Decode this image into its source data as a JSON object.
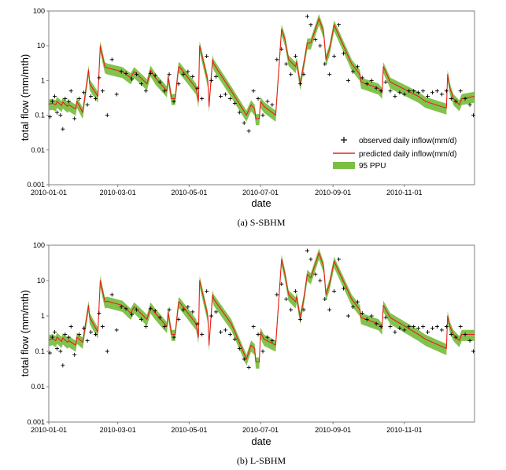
{
  "chart_data": [
    {
      "type": "line",
      "caption": "(a)  S-SBHM",
      "xlabel": "date",
      "ylabel": "total flow (mm/mth)",
      "yscale": "log",
      "ylim": [
        0.001,
        100
      ],
      "y_ticks": [
        "0.001",
        "0.01",
        "0.1",
        "1",
        "10",
        "100"
      ],
      "xlim": [
        "2010-01-01",
        "2010-12-31"
      ],
      "x_ticks": [
        "2010-01-01",
        "2010-03-01",
        "2010-05-01",
        "2010-07-01",
        "2010-09-01",
        "2010-11-01"
      ],
      "legend": {
        "position": "bottom-right",
        "entries": [
          "observed daily inflow(mm/d)",
          "predicted daily inflow(mm/d)",
          "95 PPU"
        ]
      },
      "colors": {
        "observed": "#000000",
        "predicted": "#e8201c",
        "ppu": "#7bc043"
      },
      "predicted": {
        "x": [
          "2010-01-01",
          "2010-01-04",
          "2010-01-07",
          "2010-01-08",
          "2010-01-12",
          "2010-01-13",
          "2010-01-17",
          "2010-01-18",
          "2010-01-24",
          "2010-01-25",
          "2010-01-30",
          "2010-02-04",
          "2010-02-05",
          "2010-02-12",
          "2010-02-14",
          "2010-02-18",
          "2010-02-20",
          "2010-03-05",
          "2010-03-12",
          "2010-03-15",
          "2010-03-23",
          "2010-03-26",
          "2010-03-29",
          "2010-04-02",
          "2010-04-12",
          "2010-04-13",
          "2010-04-16",
          "2010-04-19",
          "2010-04-22",
          "2010-04-23",
          "2010-05-07",
          "2010-05-09",
          "2010-05-10",
          "2010-05-17",
          "2010-05-18",
          "2010-05-21",
          "2010-05-22",
          "2010-06-06",
          "2010-06-19",
          "2010-06-23",
          "2010-06-26",
          "2010-06-27",
          "2010-06-30",
          "2010-07-01",
          "2010-07-04",
          "2010-07-14",
          "2010-07-19",
          "2010-07-22",
          "2010-07-25",
          "2010-07-31",
          "2010-08-01",
          "2010-08-04",
          "2010-08-07",
          "2010-08-10",
          "2010-08-13",
          "2010-08-20",
          "2010-08-24",
          "2010-08-26",
          "2010-08-29",
          "2010-09-02",
          "2010-09-17",
          "2010-09-21",
          "2010-09-24",
          "2010-09-25",
          "2010-10-10",
          "2010-10-13",
          "2010-10-14",
          "2010-10-20",
          "2010-11-13",
          "2010-11-19",
          "2010-12-07",
          "2010-12-08",
          "2010-12-10",
          "2010-12-13",
          "2010-12-18",
          "2010-12-20",
          "2010-12-31"
        ],
        "y": [
          0.21,
          0.22,
          0.2,
          0.25,
          0.19,
          0.24,
          0.18,
          0.2,
          0.15,
          0.25,
          0.12,
          2.0,
          0.8,
          0.35,
          10,
          2.5,
          2.3,
          1.8,
          1.2,
          1.8,
          1.0,
          0.8,
          2.0,
          1.2,
          0.5,
          1.3,
          0.3,
          0.3,
          2.5,
          2.4,
          0.6,
          0.25,
          10,
          1.0,
          0.18,
          4.0,
          3.0,
          0.5,
          0.1,
          0.2,
          0.15,
          0.08,
          0.08,
          0.25,
          0.18,
          0.1,
          30,
          15,
          4.0,
          2.5,
          3.5,
          0.8,
          3.0,
          12,
          12,
          60,
          25,
          4.0,
          8.0,
          40,
          3.0,
          2.0,
          1.5,
          0.9,
          0.6,
          0.45,
          2.5,
          0.9,
          0.35,
          0.25,
          0.16,
          1.5,
          0.6,
          0.3,
          0.2,
          0.3,
          0.35
        ]
      },
      "observed": {
        "x": [
          "2010-01-02",
          "2010-01-04",
          "2010-01-06",
          "2010-01-08",
          "2010-01-11",
          "2010-01-13",
          "2010-01-15",
          "2010-01-18",
          "2010-01-20",
          "2010-01-23",
          "2010-01-27",
          "2010-01-31",
          "2010-02-03",
          "2010-02-06",
          "2010-02-10",
          "2010-02-13",
          "2010-02-16",
          "2010-02-20",
          "2010-02-24",
          "2010-02-28",
          "2010-03-04",
          "2010-03-08",
          "2010-03-13",
          "2010-03-17",
          "2010-03-21",
          "2010-03-25",
          "2010-03-29",
          "2010-04-02",
          "2010-04-06",
          "2010-04-10",
          "2010-04-14",
          "2010-04-18",
          "2010-04-22",
          "2010-04-26",
          "2010-04-30",
          "2010-05-04",
          "2010-05-08",
          "2010-05-12",
          "2010-05-16",
          "2010-05-20",
          "2010-05-24",
          "2010-05-28",
          "2010-06-01",
          "2010-06-05",
          "2010-06-09",
          "2010-06-13",
          "2010-06-17",
          "2010-06-21",
          "2010-06-25",
          "2010-06-29",
          "2010-07-03",
          "2010-07-07",
          "2010-07-11",
          "2010-07-15",
          "2010-07-19",
          "2010-07-23",
          "2010-07-27",
          "2010-07-31",
          "2010-08-04",
          "2010-08-07",
          "2010-08-10",
          "2010-08-13",
          "2010-08-17",
          "2010-08-21",
          "2010-08-25",
          "2010-08-29",
          "2010-09-02",
          "2010-09-06",
          "2010-09-10",
          "2010-09-14",
          "2010-09-18",
          "2010-09-22",
          "2010-09-26",
          "2010-09-30",
          "2010-10-04",
          "2010-10-08",
          "2010-10-12",
          "2010-10-16",
          "2010-10-20",
          "2010-10-24",
          "2010-10-28",
          "2010-11-01",
          "2010-11-05",
          "2010-11-09",
          "2010-11-13",
          "2010-11-17",
          "2010-11-21",
          "2010-11-25",
          "2010-11-29",
          "2010-12-03",
          "2010-12-07",
          "2010-12-11",
          "2010-12-15",
          "2010-12-19",
          "2010-12-23",
          "2010-12-27",
          "2010-12-30"
        ],
        "y": [
          0.09,
          0.25,
          0.35,
          0.12,
          0.1,
          0.04,
          0.3,
          0.25,
          0.5,
          0.08,
          0.3,
          0.45,
          0.2,
          0.35,
          0.3,
          1.2,
          0.5,
          0.1,
          4.0,
          0.4,
          1.8,
          1.6,
          1.1,
          1.5,
          0.8,
          0.5,
          1.6,
          1.4,
          0.9,
          0.5,
          1.5,
          0.25,
          0.8,
          1.5,
          1.8,
          1.3,
          0.6,
          0.3,
          5.0,
          1.0,
          1.3,
          0.35,
          0.4,
          0.3,
          0.22,
          0.12,
          0.06,
          0.035,
          0.5,
          0.3,
          0.1,
          0.25,
          0.2,
          4.0,
          8.0,
          3.0,
          1.5,
          5.0,
          0.8,
          1.5,
          70,
          40,
          15,
          10,
          3.0,
          1.5,
          5.0,
          40,
          6.0,
          1.0,
          1.8,
          2.5,
          1.2,
          0.8,
          1.0,
          0.6,
          0.5,
          0.9,
          0.5,
          0.35,
          0.45,
          0.4,
          0.5,
          0.5,
          0.45,
          0.5,
          0.35,
          0.45,
          0.5,
          0.4,
          0.5,
          0.3,
          0.25,
          0.5,
          0.3,
          0.2,
          0.1
        ]
      }
    },
    {
      "type": "line",
      "caption": "(b)  L-SBHM",
      "xlabel": "date",
      "ylabel": "total flow (mm/mth)",
      "yscale": "log",
      "ylim": [
        0.001,
        100
      ],
      "y_ticks": [
        "0.001",
        "0.01",
        "0.1",
        "1",
        "10",
        "100"
      ],
      "xlim": [
        "2010-01-01",
        "2010-12-31"
      ],
      "x_ticks": [
        "2010-01-01",
        "2010-03-01",
        "2010-05-01",
        "2010-07-01",
        "2010-09-01",
        "2010-11-01"
      ],
      "colors": {
        "observed": "#000000",
        "predicted": "#e8201c",
        "ppu": "#7bc043"
      },
      "predicted": {
        "x": [
          "2010-01-01",
          "2010-01-04",
          "2010-01-07",
          "2010-01-08",
          "2010-01-12",
          "2010-01-13",
          "2010-01-17",
          "2010-01-18",
          "2010-01-24",
          "2010-01-25",
          "2010-01-30",
          "2010-02-04",
          "2010-02-05",
          "2010-02-12",
          "2010-02-14",
          "2010-02-18",
          "2010-02-20",
          "2010-03-05",
          "2010-03-12",
          "2010-03-15",
          "2010-03-23",
          "2010-03-26",
          "2010-03-29",
          "2010-04-02",
          "2010-04-12",
          "2010-04-13",
          "2010-04-16",
          "2010-04-19",
          "2010-04-22",
          "2010-04-23",
          "2010-05-07",
          "2010-05-09",
          "2010-05-10",
          "2010-05-17",
          "2010-05-18",
          "2010-05-21",
          "2010-05-22",
          "2010-06-06",
          "2010-06-19",
          "2010-06-23",
          "2010-06-26",
          "2010-06-27",
          "2010-06-30",
          "2010-07-01",
          "2010-07-04",
          "2010-07-14",
          "2010-07-19",
          "2010-07-22",
          "2010-07-25",
          "2010-07-31",
          "2010-08-01",
          "2010-08-04",
          "2010-08-07",
          "2010-08-10",
          "2010-08-13",
          "2010-08-20",
          "2010-08-24",
          "2010-08-26",
          "2010-08-29",
          "2010-09-02",
          "2010-09-17",
          "2010-09-21",
          "2010-09-24",
          "2010-09-25",
          "2010-10-10",
          "2010-10-13",
          "2010-10-14",
          "2010-10-20",
          "2010-11-13",
          "2010-11-19",
          "2010-12-07",
          "2010-12-08",
          "2010-12-10",
          "2010-12-13",
          "2010-12-18",
          "2010-12-20",
          "2010-12-31"
        ],
        "y": [
          0.21,
          0.23,
          0.2,
          0.25,
          0.19,
          0.24,
          0.18,
          0.2,
          0.15,
          0.25,
          0.18,
          2.0,
          0.9,
          0.35,
          10,
          2.5,
          2.6,
          2.0,
          1.2,
          1.8,
          1.0,
          0.8,
          1.8,
          1.2,
          0.5,
          1.3,
          0.3,
          0.3,
          2.5,
          2.4,
          0.6,
          0.25,
          10,
          1.0,
          0.15,
          4.0,
          3.0,
          0.6,
          0.06,
          0.15,
          0.12,
          0.05,
          0.05,
          0.35,
          0.22,
          0.15,
          40,
          15,
          4.0,
          2.5,
          3.5,
          0.9,
          3.0,
          15,
          12,
          60,
          25,
          4.0,
          8.0,
          35,
          3.0,
          2.0,
          1.5,
          0.9,
          0.6,
          0.45,
          2.0,
          0.9,
          0.3,
          0.22,
          0.12,
          1.0,
          0.5,
          0.3,
          0.2,
          0.3,
          0.3
        ]
      },
      "observed": {
        "x": [
          "2010-01-02",
          "2010-01-04",
          "2010-01-06",
          "2010-01-08",
          "2010-01-11",
          "2010-01-13",
          "2010-01-15",
          "2010-01-18",
          "2010-01-20",
          "2010-01-23",
          "2010-01-27",
          "2010-01-31",
          "2010-02-03",
          "2010-02-06",
          "2010-02-10",
          "2010-02-13",
          "2010-02-16",
          "2010-02-20",
          "2010-02-24",
          "2010-02-28",
          "2010-03-04",
          "2010-03-08",
          "2010-03-13",
          "2010-03-17",
          "2010-03-21",
          "2010-03-25",
          "2010-03-29",
          "2010-04-02",
          "2010-04-06",
          "2010-04-10",
          "2010-04-14",
          "2010-04-18",
          "2010-04-22",
          "2010-04-26",
          "2010-04-30",
          "2010-05-04",
          "2010-05-08",
          "2010-05-12",
          "2010-05-16",
          "2010-05-20",
          "2010-05-24",
          "2010-05-28",
          "2010-06-01",
          "2010-06-05",
          "2010-06-09",
          "2010-06-13",
          "2010-06-17",
          "2010-06-21",
          "2010-06-25",
          "2010-06-29",
          "2010-07-03",
          "2010-07-07",
          "2010-07-11",
          "2010-07-15",
          "2010-07-19",
          "2010-07-23",
          "2010-07-27",
          "2010-07-31",
          "2010-08-04",
          "2010-08-07",
          "2010-08-10",
          "2010-08-13",
          "2010-08-17",
          "2010-08-21",
          "2010-08-25",
          "2010-08-29",
          "2010-09-02",
          "2010-09-06",
          "2010-09-10",
          "2010-09-14",
          "2010-09-18",
          "2010-09-22",
          "2010-09-26",
          "2010-09-30",
          "2010-10-04",
          "2010-10-08",
          "2010-10-12",
          "2010-10-16",
          "2010-10-20",
          "2010-10-24",
          "2010-10-28",
          "2010-11-01",
          "2010-11-05",
          "2010-11-09",
          "2010-11-13",
          "2010-11-17",
          "2010-11-21",
          "2010-11-25",
          "2010-11-29",
          "2010-12-03",
          "2010-12-07",
          "2010-12-11",
          "2010-12-15",
          "2010-12-19",
          "2010-12-23",
          "2010-12-27",
          "2010-12-30"
        ],
        "y": [
          0.09,
          0.25,
          0.35,
          0.12,
          0.1,
          0.04,
          0.3,
          0.25,
          0.5,
          0.08,
          0.3,
          0.45,
          0.2,
          0.35,
          0.3,
          1.2,
          0.5,
          0.1,
          4.0,
          0.4,
          1.8,
          1.6,
          1.1,
          1.5,
          0.8,
          0.5,
          1.6,
          1.4,
          0.9,
          0.5,
          1.5,
          0.25,
          0.8,
          1.5,
          1.8,
          1.3,
          0.6,
          0.3,
          5.0,
          1.0,
          1.3,
          0.35,
          0.4,
          0.3,
          0.22,
          0.12,
          0.06,
          0.035,
          0.5,
          0.3,
          0.1,
          0.25,
          0.2,
          4.0,
          8.0,
          3.0,
          1.5,
          5.0,
          0.8,
          1.5,
          70,
          40,
          15,
          10,
          3.0,
          1.5,
          5.0,
          40,
          6.0,
          1.0,
          1.8,
          2.5,
          1.2,
          0.8,
          1.0,
          0.6,
          0.5,
          0.9,
          0.5,
          0.35,
          0.45,
          0.4,
          0.5,
          0.5,
          0.45,
          0.5,
          0.35,
          0.45,
          0.5,
          0.4,
          0.5,
          0.3,
          0.25,
          0.5,
          0.3,
          0.2,
          0.1
        ]
      }
    }
  ]
}
